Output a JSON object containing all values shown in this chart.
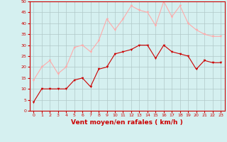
{
  "x": [
    0,
    1,
    2,
    3,
    4,
    5,
    6,
    7,
    8,
    9,
    10,
    11,
    12,
    13,
    14,
    15,
    16,
    17,
    18,
    19,
    20,
    21,
    22,
    23
  ],
  "mean_wind": [
    4,
    10,
    10,
    10,
    10,
    14,
    15,
    11,
    19,
    20,
    26,
    27,
    28,
    30,
    30,
    24,
    30,
    27,
    26,
    25,
    19,
    23,
    22,
    22
  ],
  "gust_wind": [
    14,
    20,
    23,
    17,
    20,
    29,
    30,
    27,
    32,
    42,
    37,
    42,
    48,
    46,
    45,
    39,
    50,
    43,
    48,
    40,
    37,
    35,
    34,
    34
  ],
  "mean_color": "#cc0000",
  "gust_color": "#ffaaaa",
  "bg_color": "#d5f0f0",
  "grid_color": "#b0c8c8",
  "xlabel": "Vent moyen/en rafales ( km/h )",
  "xlabel_color": "#cc0000",
  "tick_color": "#cc0000",
  "spine_color": "#cc0000",
  "ylim": [
    0,
    50
  ],
  "yticks": [
    0,
    5,
    10,
    15,
    20,
    25,
    30,
    35,
    40,
    45,
    50
  ]
}
